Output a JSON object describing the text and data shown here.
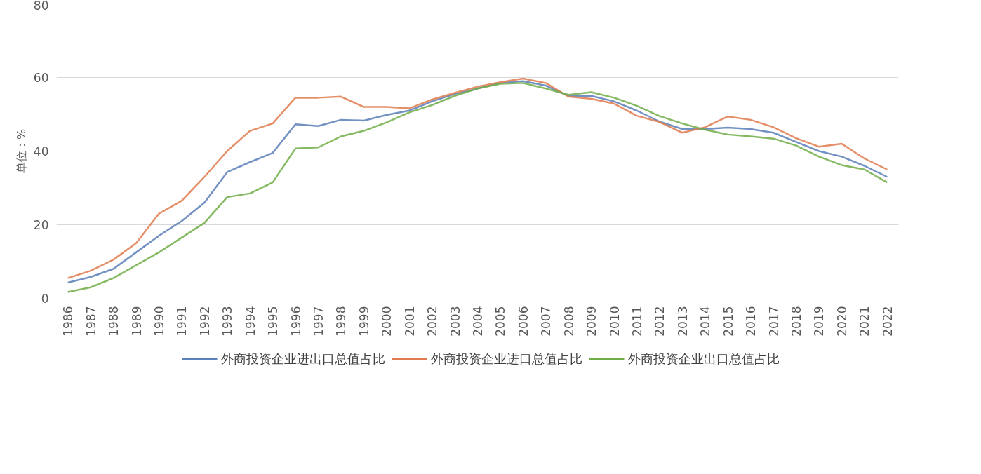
{
  "chart_data": {
    "type": "line",
    "ylabel": "单位：%",
    "ylim": [
      0,
      80
    ],
    "yticks": [
      0,
      20,
      40,
      60,
      80
    ],
    "grid": "y",
    "legend": "bottom",
    "line_style": "solid",
    "categories": [
      "1986",
      "1987",
      "1988",
      "1989",
      "1990",
      "1991",
      "1992",
      "1993",
      "1994",
      "1995",
      "1996",
      "1997",
      "1998",
      "1999",
      "2000",
      "2001",
      "2002",
      "2003",
      "2004",
      "2005",
      "2006",
      "2007",
      "2008",
      "2009",
      "2010",
      "2011",
      "2012",
      "2013",
      "2014",
      "2015",
      "2016",
      "2017",
      "2018",
      "2019",
      "2020",
      "2021",
      "2022"
    ],
    "series": [
      {
        "name": "外商投资企业进出口总值占比",
        "color": "#5b7fb8",
        "values": [
          4.3,
          5.8,
          8,
          12.5,
          17,
          21,
          26,
          34.3,
          37,
          39.5,
          47.3,
          46.8,
          48.5,
          48.3,
          49.8,
          51,
          53.5,
          55.5,
          57,
          58.5,
          59,
          57.8,
          55,
          55,
          53.5,
          51,
          48,
          46,
          46,
          46.4,
          46,
          45,
          42.5,
          40,
          38.5,
          36,
          33
        ]
      },
      {
        "name": "外商投资企业进口总值占比",
        "color": "#e07b4f",
        "values": [
          5.5,
          7.5,
          10.5,
          15,
          23,
          26.5,
          33,
          40,
          45.5,
          47.5,
          54.5,
          54.5,
          54.8,
          52,
          52,
          51.6,
          54,
          55.8,
          57.5,
          58.7,
          59.7,
          58.5,
          54.8,
          54.2,
          52.9,
          49.6,
          47.9,
          45,
          46.5,
          49.4,
          48.5,
          46.5,
          43.5,
          41.2,
          42,
          38,
          35
        ]
      },
      {
        "name": "外商投资企业出口总值占比",
        "color": "#70ad47",
        "values": [
          1.7,
          3,
          5.5,
          9,
          12.5,
          16.5,
          20.5,
          27.5,
          28.5,
          31.5,
          40.7,
          41,
          44,
          45.5,
          47.8,
          50.5,
          52.5,
          55,
          57,
          58.3,
          58.5,
          57,
          55.3,
          56,
          54.5,
          52.3,
          49.5,
          47.5,
          45.8,
          44.5,
          44,
          43.4,
          41.5,
          38.5,
          36.2,
          35,
          31.5
        ]
      }
    ]
  }
}
